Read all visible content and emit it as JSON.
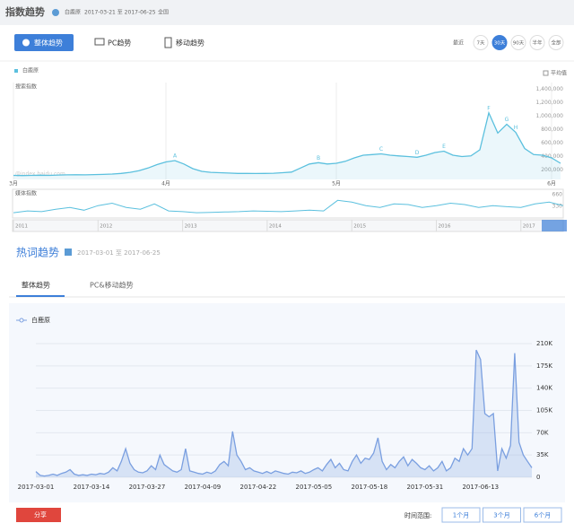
{
  "index_panel": {
    "title": "指数趋势",
    "keyword": "白鹿原",
    "date_range": "2017-03-21 至 2017-06-25",
    "region": "全国",
    "tabs": [
      "整体趋势",
      "PC趋势",
      "移动趋势"
    ],
    "period_prefix": "最近",
    "periods": [
      "7天",
      "30天",
      "90天",
      "半年",
      "全部"
    ],
    "selected_period": "30天",
    "search_chart": {
      "type": "line",
      "y_label": "搜索指数",
      "legend": "白鹿原",
      "average_label": "平均值",
      "color": "#5bc0de",
      "watermark": "@index.baidu.com",
      "categories": [
        "3月",
        null,
        null,
        null,
        null,
        null,
        null,
        null,
        null,
        null,
        null,
        null,
        null,
        null,
        null,
        null,
        null,
        "4月",
        null,
        null,
        null,
        null,
        null,
        null,
        null,
        null,
        null,
        null,
        null,
        null,
        null,
        null,
        null,
        null,
        null,
        null,
        "5月",
        null,
        null,
        null,
        null,
        null,
        null,
        null,
        null,
        null,
        null,
        null,
        null,
        null,
        null,
        null,
        null,
        null,
        null,
        null,
        null,
        null,
        null,
        null,
        "6月",
        null
      ],
      "values": [
        120000,
        118000,
        120000,
        122000,
        120000,
        125000,
        128000,
        130000,
        128000,
        132000,
        135000,
        140000,
        150000,
        165000,
        190000,
        230000,
        280000,
        320000,
        340000,
        290000,
        220000,
        180000,
        165000,
        160000,
        155000,
        150000,
        150000,
        148000,
        150000,
        152000,
        160000,
        170000,
        230000,
        290000,
        310000,
        290000,
        300000,
        330000,
        380000,
        420000,
        430000,
        440000,
        420000,
        410000,
        400000,
        390000,
        420000,
        460000,
        480000,
        420000,
        400000,
        410000,
        500000,
        1050000,
        750000,
        880000,
        760000,
        520000,
        430000,
        420000,
        380000,
        300000
      ],
      "annotations": [
        "A",
        "B",
        "C",
        "D",
        "E",
        "F",
        "G",
        "H"
      ],
      "ylim": [
        60000,
        1500000
      ],
      "yticks": [
        {
          "value": 200000,
          "label": "200,000"
        },
        {
          "value": 400000,
          "label": "400,000"
        },
        {
          "value": 600000,
          "label": "600,000"
        },
        {
          "value": 800000,
          "label": "800,000"
        },
        {
          "value": 1000000,
          "label": "1,000,000"
        },
        {
          "value": 1200000,
          "label": "1,200,000"
        },
        {
          "value": 1400000,
          "label": "1,400,000"
        }
      ]
    },
    "media_chart": {
      "type": "line",
      "y_label": "媒体指数",
      "color": "#5bc0de",
      "values": [
        150,
        200,
        180,
        250,
        300,
        220,
        350,
        420,
        300,
        250,
        400,
        200,
        180,
        150,
        160,
        170,
        180,
        200,
        190,
        180,
        200,
        220,
        200,
        500,
        450,
        350,
        300,
        400,
        380,
        300,
        350,
        420,
        380,
        300,
        350,
        320,
        300,
        400,
        450,
        350
      ],
      "ylim": [
        0,
        800
      ],
      "yticks": [
        330,
        660
      ]
    },
    "timeline": {
      "years": [
        "2011",
        "2012",
        "2013",
        "2014",
        "2015",
        "2016",
        "2017"
      ]
    }
  },
  "hotword_panel": {
    "title": "热词趋势",
    "date_range": "2017-03-01 至 2017-06-25",
    "tabs": [
      "整体趋势",
      "PC&移动趋势"
    ],
    "share": "分享",
    "range_label": "时间范围:",
    "ranges": [
      "1个月",
      "3个月",
      "6个月"
    ],
    "chart_data": {
      "type": "line",
      "series": [
        {
          "name": "白鹿原",
          "color": "#7a9fe0",
          "values": [
            9000,
            3000,
            2000,
            3000,
            5000,
            3000,
            6000,
            8000,
            12000,
            5000,
            3000,
            4000,
            3000,
            5000,
            4000,
            6000,
            5000,
            8000,
            15000,
            10000,
            25000,
            45000,
            22000,
            12000,
            8000,
            7000,
            10000,
            18000,
            12000,
            35000,
            20000,
            15000,
            10000,
            8000,
            12000,
            45000,
            10000,
            8000,
            6000,
            5000,
            8000,
            6000,
            10000,
            20000,
            25000,
            18000,
            72000,
            35000,
            25000,
            12000,
            15000,
            10000,
            8000,
            6000,
            9000,
            6000,
            10000,
            8000,
            6000,
            5000,
            8000,
            7000,
            10000,
            6000,
            8000,
            12000,
            15000,
            10000,
            20000,
            28000,
            15000,
            22000,
            12000,
            10000,
            25000,
            35000,
            22000,
            30000,
            28000,
            38000,
            62000,
            25000,
            12000,
            20000,
            15000,
            25000,
            32000,
            18000,
            28000,
            22000,
            15000,
            12000,
            18000,
            10000,
            15000,
            25000,
            10000,
            15000,
            30000,
            25000,
            45000,
            35000,
            45000,
            200000,
            185000,
            100000,
            95000,
            100000,
            10000,
            45000,
            30000,
            50000,
            195000,
            55000,
            35000,
            25000,
            15000
          ]
        }
      ],
      "categories": [
        "2017-03-01",
        null,
        null,
        null,
        null,
        null,
        null,
        null,
        null,
        null,
        null,
        null,
        null,
        "2017-03-14",
        null,
        null,
        null,
        null,
        null,
        null,
        null,
        null,
        null,
        null,
        null,
        null,
        "2017-03-27",
        null,
        null,
        null,
        null,
        null,
        null,
        null,
        null,
        null,
        null,
        null,
        null,
        "2017-04-09",
        null,
        null,
        null,
        null,
        null,
        null,
        null,
        null,
        null,
        null,
        null,
        null,
        "2017-04-22",
        null,
        null,
        null,
        null,
        null,
        null,
        null,
        null,
        null,
        null,
        null,
        null,
        "2017-05-05",
        null,
        null,
        null,
        null,
        null,
        null,
        null,
        null,
        null,
        null,
        null,
        null,
        "2017-05-18",
        null,
        null,
        null,
        null,
        null,
        null,
        null,
        null,
        null,
        null,
        null,
        null,
        "2017-05-31",
        null,
        null,
        null,
        null,
        null,
        null,
        null,
        null,
        null,
        null,
        null,
        null,
        "2017-06-13",
        null,
        null,
        null,
        null,
        null,
        null,
        null,
        null,
        null,
        null,
        null,
        null
      ],
      "ylim": [
        0,
        210000
      ],
      "yticks": [
        0,
        {
          "value": 35000,
          "label": "35K"
        },
        {
          "value": 70000,
          "label": "70K"
        },
        {
          "value": 105000,
          "label": "105K"
        },
        {
          "value": 140000,
          "label": "140K"
        },
        {
          "value": 175000,
          "label": "175K"
        },
        {
          "value": 210000,
          "label": "210K"
        }
      ],
      "grid": true
    }
  }
}
